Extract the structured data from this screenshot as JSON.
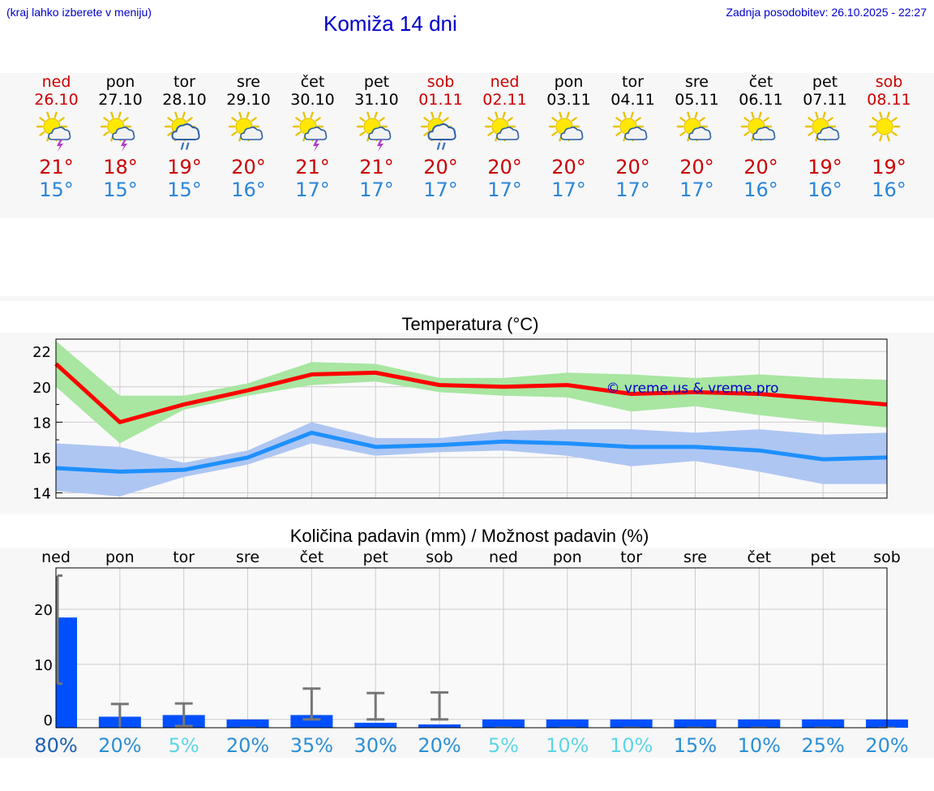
{
  "header": {
    "hint": "(kraj lahko izberete v meniju)",
    "title": "Komiža 14 dni",
    "updated": "Zadnja posodobitev: 26.10.2025 - 22:27"
  },
  "days": [
    {
      "name": "ned",
      "date": "26.10",
      "weekend": true,
      "icon": "sun-cloud-thunder-icon",
      "max": "21°",
      "min": "15°"
    },
    {
      "name": "pon",
      "date": "27.10",
      "weekend": false,
      "icon": "sun-cloud-thunder-icon",
      "max": "18°",
      "min": "15°"
    },
    {
      "name": "tor",
      "date": "28.10",
      "weekend": false,
      "icon": "sun-cloud-rain-icon",
      "max": "19°",
      "min": "15°"
    },
    {
      "name": "sre",
      "date": "29.10",
      "weekend": false,
      "icon": "sun-cloud-icon",
      "max": "20°",
      "min": "16°"
    },
    {
      "name": "čet",
      "date": "30.10",
      "weekend": false,
      "icon": "sun-cloud-thunder-icon",
      "max": "21°",
      "min": "17°"
    },
    {
      "name": "pet",
      "date": "31.10",
      "weekend": false,
      "icon": "sun-cloud-thunder-icon",
      "max": "21°",
      "min": "17°"
    },
    {
      "name": "sob",
      "date": "01.11",
      "weekend": true,
      "icon": "sun-cloud-rain-icon",
      "max": "20°",
      "min": "17°"
    },
    {
      "name": "ned",
      "date": "02.11",
      "weekend": true,
      "icon": "sun-cloud-icon",
      "max": "20°",
      "min": "17°"
    },
    {
      "name": "pon",
      "date": "03.11",
      "weekend": false,
      "icon": "sun-cloud-icon",
      "max": "20°",
      "min": "17°"
    },
    {
      "name": "tor",
      "date": "04.11",
      "weekend": false,
      "icon": "sun-cloud-icon",
      "max": "20°",
      "min": "17°"
    },
    {
      "name": "sre",
      "date": "05.11",
      "weekend": false,
      "icon": "sun-cloud-icon",
      "max": "20°",
      "min": "17°"
    },
    {
      "name": "čet",
      "date": "06.11",
      "weekend": false,
      "icon": "sun-cloud-icon",
      "max": "20°",
      "min": "16°"
    },
    {
      "name": "pet",
      "date": "07.11",
      "weekend": false,
      "icon": "sun-cloud-icon",
      "max": "19°",
      "min": "16°"
    },
    {
      "name": "sob",
      "date": "08.11",
      "weekend": true,
      "icon": "sun-icon",
      "max": "19°",
      "min": "16°"
    }
  ],
  "colors": {
    "max_line": "#ff0000",
    "max_band": "#a8e6a1",
    "min_line": "#1e90ff",
    "min_band": "#aec6f2",
    "bar": "#0050ff",
    "whisker": "#777777",
    "weekend": "#cc0000",
    "watermark": "#0000cc"
  },
  "chart_data": [
    {
      "type": "line",
      "title": "Temperatura (°C)",
      "watermark": "© vreme.us & vreme.pro",
      "x_count": 14,
      "ylim": [
        13.7,
        22.7
      ],
      "yticks": [
        14,
        16,
        18,
        20,
        22
      ],
      "grid": true,
      "series": [
        {
          "key": "max",
          "values": [
            21.3,
            18.0,
            19.0,
            19.8,
            20.7,
            20.8,
            20.1,
            20.0,
            20.1,
            19.6,
            19.7,
            19.6,
            19.3,
            19.0
          ],
          "band_low": [
            20.0,
            16.8,
            18.7,
            19.5,
            20.1,
            20.3,
            19.7,
            19.5,
            19.4,
            18.6,
            18.9,
            18.4,
            18.0,
            17.7
          ],
          "band_high": [
            22.6,
            19.5,
            19.5,
            20.2,
            21.4,
            21.3,
            20.5,
            20.5,
            20.8,
            20.7,
            20.5,
            20.7,
            20.5,
            20.4
          ]
        },
        {
          "key": "min",
          "values": [
            15.4,
            15.2,
            15.3,
            16.0,
            17.4,
            16.6,
            16.7,
            16.9,
            16.8,
            16.6,
            16.6,
            16.4,
            15.9,
            16.0
          ],
          "band_low": [
            14.1,
            13.8,
            14.9,
            15.6,
            16.8,
            16.1,
            16.3,
            16.4,
            16.1,
            15.5,
            15.8,
            15.2,
            14.5,
            14.5
          ],
          "band_high": [
            16.8,
            16.6,
            15.7,
            16.4,
            18.0,
            17.1,
            17.1,
            17.5,
            17.6,
            17.6,
            17.4,
            17.6,
            17.3,
            17.4
          ]
        }
      ]
    },
    {
      "type": "bar",
      "title": "Količina padavin (mm) / Možnost padavin (%)",
      "categories": [
        "ned",
        "pon",
        "tor",
        "sre",
        "čet",
        "pet",
        "sob",
        "ned",
        "pon",
        "tor",
        "sre",
        "čet",
        "pet",
        "sob"
      ],
      "ylim": [
        -1.5,
        27.5
      ],
      "yticks": [
        0,
        10,
        20
      ],
      "grid": true,
      "values": [
        18.5,
        0.5,
        0.8,
        0,
        0.8,
        -0.6,
        -0.9,
        0,
        0,
        0,
        0,
        0,
        0,
        0
      ],
      "err_low": [
        6.5,
        -1.5,
        -1.2,
        0,
        0,
        0,
        0,
        0,
        0,
        0,
        0,
        0,
        0,
        0
      ],
      "err_high": [
        26.1,
        2.8,
        2.9,
        0,
        5.6,
        4.8,
        4.9,
        0,
        0,
        0,
        0,
        0,
        0,
        0
      ],
      "probabilities": [
        "80%",
        "20%",
        "5%",
        "20%",
        "35%",
        "30%",
        "20%",
        "5%",
        "10%",
        "10%",
        "15%",
        "10%",
        "25%",
        "20%"
      ],
      "probability_colors": [
        "#1a5fb4",
        "#2b8fd6",
        "#5cd6e6",
        "#2b8fd6",
        "#2b8fd6",
        "#2b8fd6",
        "#2b8fd6",
        "#5cd6e6",
        "#5cd6e6",
        "#5cd6e6",
        "#2b8fd6",
        "#2b8fd6",
        "#2b8fd6",
        "#2b8fd6"
      ]
    }
  ]
}
